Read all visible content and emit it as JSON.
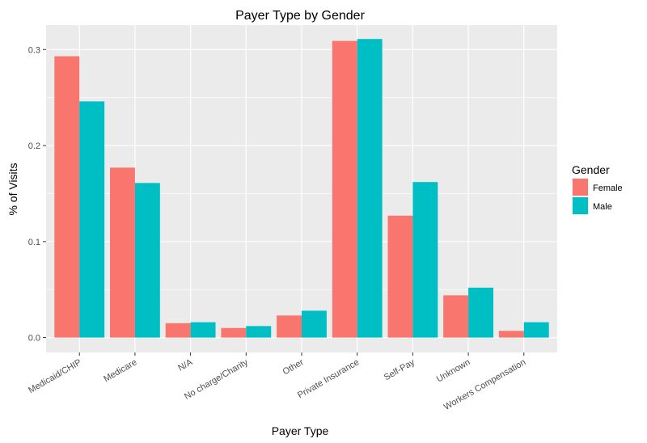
{
  "chart_data": {
    "type": "bar",
    "title": "Payer Type by Gender",
    "xlabel": "Payer Type",
    "ylabel": "% of Visits",
    "categories": [
      "Medicaid/CHIP",
      "Medicare",
      "N/A",
      "No charge/Charity",
      "Other",
      "Private Insurance",
      "Self-Pay",
      "Unknown",
      "Workers Compensation"
    ],
    "series": [
      {
        "name": "Female",
        "color": "#f8766d",
        "values": [
          0.293,
          0.177,
          0.015,
          0.01,
          0.023,
          0.309,
          0.127,
          0.044,
          0.007
        ]
      },
      {
        "name": "Male",
        "color": "#00bfc4",
        "values": [
          0.246,
          0.161,
          0.016,
          0.012,
          0.028,
          0.311,
          0.162,
          0.052,
          0.016
        ]
      }
    ],
    "ylim": [
      -0.0155,
      0.3255
    ],
    "yticks": [
      0.0,
      0.1,
      0.2,
      0.3
    ],
    "ytick_labels": [
      "0.0",
      "0.1",
      "0.2",
      "0.3"
    ],
    "grid": true,
    "panel_background": "#ebebeb",
    "legend": {
      "title": "Gender",
      "position": "right"
    }
  }
}
